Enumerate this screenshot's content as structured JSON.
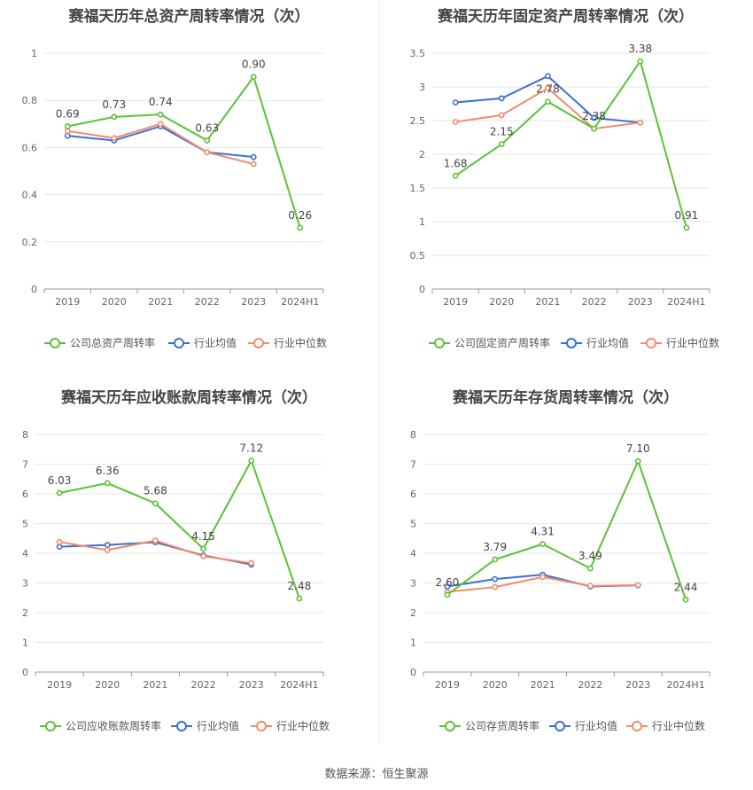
{
  "colors": {
    "company": "#5bc236",
    "average": "#3b6fd4",
    "median": "#f08c6c"
  },
  "legend_avg": "行业均值",
  "legend_median": "行业中位数",
  "source": "数据来源：恒生聚源",
  "chart_data": [
    {
      "type": "line",
      "title": "赛福天历年总资产周转率情况（次）",
      "categories": [
        "2019",
        "2020",
        "2021",
        "2022",
        "2023",
        "2024H1"
      ],
      "ylim": [
        0,
        1
      ],
      "yticks": [
        "0",
        "0.2",
        "0.4",
        "0.6",
        "0.8",
        "1"
      ],
      "series": [
        {
          "name": "公司总资产周转率",
          "values": [
            0.69,
            0.73,
            0.74,
            0.63,
            0.9,
            0.26
          ],
          "labels": [
            "0.69",
            "0.73",
            "0.74",
            "0.63",
            "0.90",
            "0.26"
          ]
        },
        {
          "name": "行业均值",
          "values": [
            0.65,
            0.63,
            0.69,
            0.58,
            0.56,
            null
          ]
        },
        {
          "name": "行业中位数",
          "values": [
            0.67,
            0.64,
            0.7,
            0.58,
            0.53,
            null
          ]
        }
      ],
      "grid": true,
      "legend": "bottom"
    },
    {
      "type": "line",
      "title": "赛福天历年固定资产周转率情况（次）",
      "categories": [
        "2019",
        "2020",
        "2021",
        "2022",
        "2023",
        "2024H1"
      ],
      "ylim": [
        0,
        3.5
      ],
      "yticks": [
        "0",
        "0.5",
        "1",
        "1.5",
        "2",
        "2.5",
        "3",
        "3.5"
      ],
      "series": [
        {
          "name": "公司固定资产周转率",
          "values": [
            1.68,
            2.15,
            2.78,
            2.38,
            3.38,
            0.91
          ],
          "labels": [
            "1.68",
            "2.15",
            "2.78",
            "2.38",
            "3.38",
            "0.91"
          ]
        },
        {
          "name": "行业均值",
          "values": [
            2.77,
            2.83,
            3.16,
            2.54,
            2.47,
            null
          ]
        },
        {
          "name": "行业中位数",
          "values": [
            2.48,
            2.58,
            2.98,
            2.38,
            2.47,
            null
          ]
        }
      ],
      "grid": true,
      "legend": "bottom"
    },
    {
      "type": "line",
      "title": "赛福天历年应收账款周转率情况（次）",
      "categories": [
        "2019",
        "2020",
        "2021",
        "2022",
        "2023",
        "2024H1"
      ],
      "ylim": [
        0,
        8
      ],
      "yticks": [
        "0",
        "1",
        "2",
        "3",
        "4",
        "5",
        "6",
        "7",
        "8"
      ],
      "series": [
        {
          "name": "公司应收账款周转率",
          "values": [
            6.03,
            6.36,
            5.68,
            4.15,
            7.12,
            2.48
          ],
          "labels": [
            "6.03",
            "6.36",
            "5.68",
            "4.15",
            "7.12",
            "2.48"
          ]
        },
        {
          "name": "行业均值",
          "values": [
            4.22,
            4.28,
            4.37,
            3.93,
            3.62,
            null
          ]
        },
        {
          "name": "行业中位数",
          "values": [
            4.38,
            4.11,
            4.43,
            3.9,
            3.67,
            null
          ]
        }
      ],
      "grid": true,
      "legend": "bottom"
    },
    {
      "type": "line",
      "title": "赛福天历年存货周转率情况（次）",
      "categories": [
        "2019",
        "2020",
        "2021",
        "2022",
        "2023",
        "2024H1"
      ],
      "ylim": [
        0,
        8
      ],
      "yticks": [
        "0",
        "1",
        "2",
        "3",
        "4",
        "5",
        "6",
        "7",
        "8"
      ],
      "series": [
        {
          "name": "公司存货周转率",
          "values": [
            2.6,
            3.79,
            4.31,
            3.49,
            7.1,
            2.44
          ],
          "labels": [
            "2.60",
            "3.79",
            "4.31",
            "3.49",
            "7.10",
            "2.44"
          ]
        },
        {
          "name": "行业均值",
          "values": [
            2.88,
            3.13,
            3.28,
            2.88,
            2.92,
            null
          ]
        },
        {
          "name": "行业中位数",
          "values": [
            2.7,
            2.86,
            3.2,
            2.9,
            2.93,
            null
          ]
        }
      ],
      "grid": true,
      "legend": "bottom"
    }
  ]
}
